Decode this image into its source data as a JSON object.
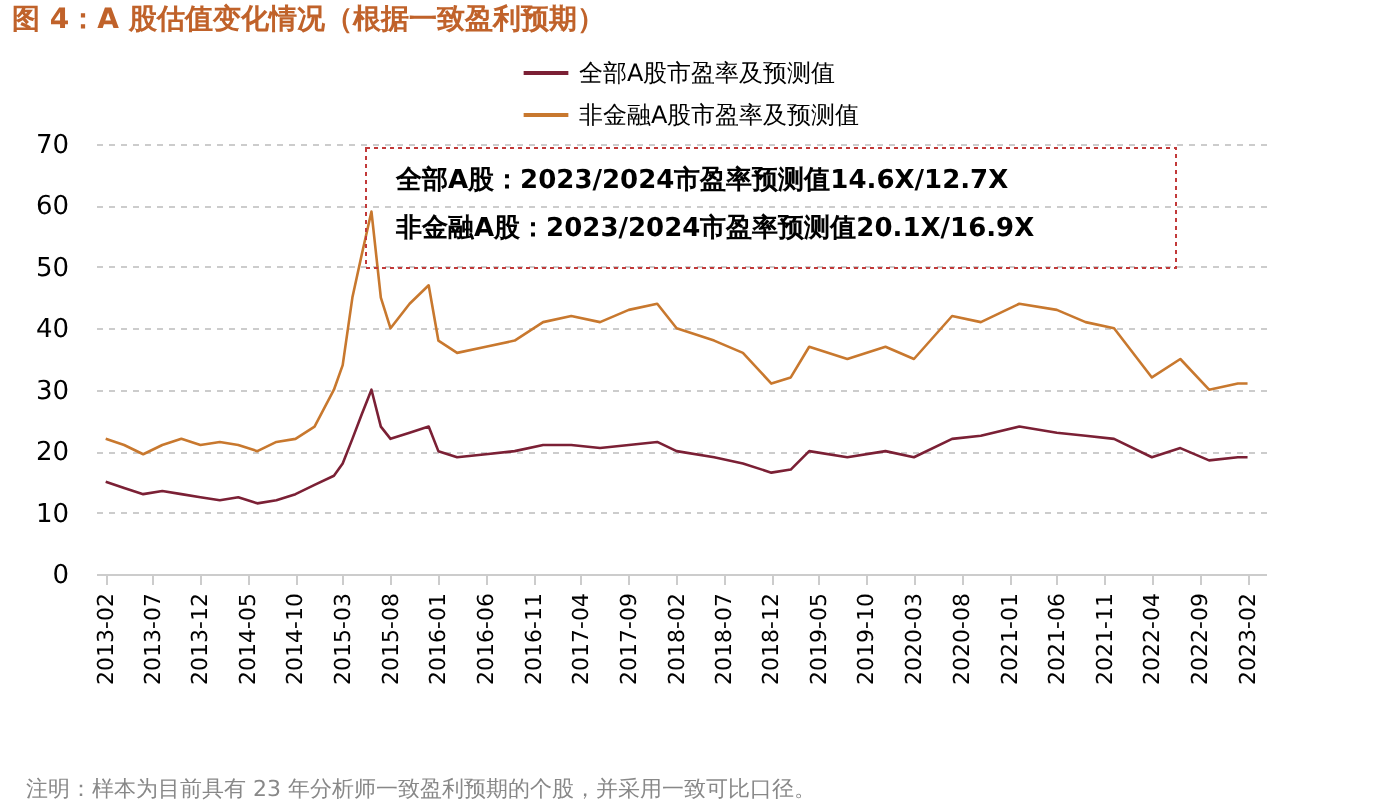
{
  "chart_data": {
    "type": "line",
    "title": "图 4：A 股估值变化情况（根据一致盈利预期）",
    "annotations": [
      "全部A股：2023/2024市盈率预测值14.6X/12.7X",
      "非金融A股：2023/2024市盈率预测值20.1X/16.9X",
      "注明：样本为目前具有 23 年分析师一致盈利预期的个股，并采用一致可比口径。"
    ],
    "x": [
      "2013-02",
      "2013-04",
      "2013-06",
      "2013-08",
      "2013-10",
      "2013-12",
      "2014-02",
      "2014-04",
      "2014-06",
      "2014-08",
      "2014-10",
      "2014-12",
      "2015-02",
      "2015-03",
      "2015-04",
      "2015-05",
      "2015-06",
      "2015-07",
      "2015-08",
      "2015-10",
      "2015-12",
      "2016-01",
      "2016-03",
      "2016-06",
      "2016-09",
      "2016-12",
      "2017-03",
      "2017-06",
      "2017-09",
      "2017-12",
      "2018-02",
      "2018-06",
      "2018-09",
      "2018-12",
      "2019-02",
      "2019-04",
      "2019-08",
      "2019-12",
      "2020-03",
      "2020-07",
      "2020-10",
      "2021-02",
      "2021-06",
      "2021-09",
      "2021-12",
      "2022-04",
      "2022-07",
      "2022-10",
      "2023-01",
      "2023-02"
    ],
    "series": [
      {
        "name": "全部A股市盈率及预测值",
        "color": "#7b2035",
        "values": [
          15,
          14,
          13,
          13.5,
          13,
          12.5,
          12,
          12.5,
          11.5,
          12,
          13,
          14.5,
          16,
          18,
          22,
          26,
          30,
          24,
          22,
          23,
          24,
          20,
          19,
          19.5,
          20,
          21,
          21,
          20.5,
          21,
          21.5,
          20,
          19,
          18,
          16.5,
          17,
          20,
          19,
          20,
          19,
          22,
          22.5,
          24,
          23,
          22.5,
          22,
          19,
          20.5,
          18.5,
          19,
          19
        ]
      },
      {
        "name": "非金融A股市盈率及预测值",
        "color": "#c8782e",
        "values": [
          22,
          21,
          19.5,
          21,
          22,
          21,
          21.5,
          21,
          20,
          21.5,
          22,
          24,
          30,
          34,
          45,
          52,
          59,
          45,
          40,
          44,
          47,
          38,
          36,
          37,
          38,
          41,
          42,
          41,
          43,
          44,
          40,
          38,
          36,
          31,
          32,
          37,
          35,
          37,
          35,
          42,
          41,
          44,
          43,
          41,
          40,
          32,
          35,
          30,
          31,
          31
        ]
      }
    ],
    "xlim": [
      "2013-01",
      "2023-04"
    ],
    "xticks": [
      "2013-02",
      "2013-07",
      "2013-12",
      "2014-05",
      "2014-10",
      "2015-03",
      "2015-08",
      "2016-01",
      "2016-06",
      "2016-11",
      "2017-04",
      "2017-09",
      "2018-02",
      "2018-07",
      "2018-12",
      "2019-05",
      "2019-10",
      "2020-03",
      "2020-08",
      "2021-01",
      "2021-06",
      "2021-11",
      "2022-04",
      "2022-09",
      "2023-02"
    ],
    "ylim": [
      0,
      70
    ],
    "yticks": [
      0,
      10,
      20,
      30,
      40,
      50,
      60,
      70
    ],
    "grid": "y",
    "legend": "top",
    "marker": "none",
    "line_style": "solid"
  }
}
